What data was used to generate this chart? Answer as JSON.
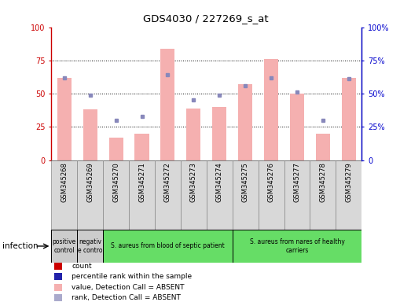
{
  "title": "GDS4030 / 227269_s_at",
  "samples": [
    "GSM345268",
    "GSM345269",
    "GSM345270",
    "GSM345271",
    "GSM345272",
    "GSM345273",
    "GSM345274",
    "GSM345275",
    "GSM345276",
    "GSM345277",
    "GSM345278",
    "GSM345279"
  ],
  "bar_values": [
    62,
    38,
    17,
    20,
    84,
    39,
    40,
    57,
    76,
    50,
    20,
    62
  ],
  "rank_dots": [
    62,
    49,
    30,
    33,
    64,
    45,
    49,
    56,
    62,
    51,
    30,
    61
  ],
  "bar_color": "#f5b0b0",
  "dot_color": "#8888bb",
  "ylim": [
    0,
    100
  ],
  "yticks": [
    0,
    25,
    50,
    75,
    100
  ],
  "infection_groups": [
    {
      "label": "positive\ncontrol",
      "start": 0,
      "end": 1,
      "color": "#cccccc"
    },
    {
      "label": "negativ\ne contro",
      "start": 1,
      "end": 2,
      "color": "#cccccc"
    },
    {
      "label": "S. aureus from blood of septic patient",
      "start": 2,
      "end": 7,
      "color": "#66dd66"
    },
    {
      "label": "S. aureus from nares of healthy\ncarriers",
      "start": 7,
      "end": 12,
      "color": "#66dd66"
    }
  ],
  "legend_items": [
    {
      "color": "#cc0000",
      "label": "count"
    },
    {
      "color": "#2222aa",
      "label": "percentile rank within the sample"
    },
    {
      "color": "#f5b0b0",
      "label": "value, Detection Call = ABSENT"
    },
    {
      "color": "#aaaacc",
      "label": "rank, Detection Call = ABSENT"
    }
  ],
  "infection_label": "infection",
  "left_axis_color": "#cc0000",
  "right_axis_color": "#0000cc",
  "bg_color": "#ffffff"
}
